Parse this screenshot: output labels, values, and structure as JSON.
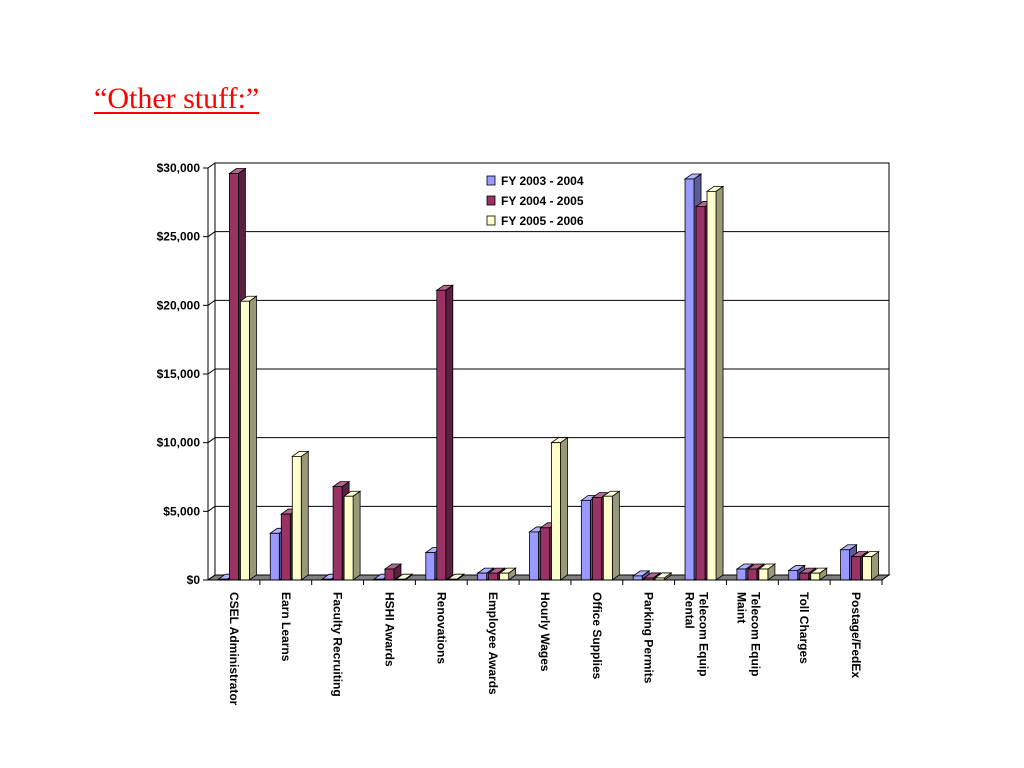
{
  "slide": {
    "title": "“Other stuff:”"
  },
  "colors": {
    "series": [
      "#9999ff",
      "#993366",
      "#ffffcc"
    ],
    "axis": "#000000",
    "floor": "#808080"
  },
  "chart_data": {
    "type": "bar",
    "categories": [
      "CSEL Administrator",
      "Earn Learns",
      "Faculty Recruiting",
      "HSHI Awards",
      "Renovations",
      "Employee Awards",
      "Hourly Wages",
      "Office Supplies",
      "Parking Permits",
      "Telecom Equip Rental",
      "Telecom Equip Maint",
      "Toll Charges",
      "Postage/FedEx"
    ],
    "series": [
      {
        "name": "FY 2003 - 2004",
        "values": [
          0,
          3400,
          0,
          0,
          2000,
          500,
          3500,
          5800,
          300,
          29200,
          800,
          700,
          2200
        ]
      },
      {
        "name": "FY 2004 - 2005",
        "values": [
          29600,
          4800,
          6800,
          800,
          21100,
          500,
          3800,
          6000,
          150,
          27200,
          800,
          500,
          1700
        ]
      },
      {
        "name": "FY 2005 - 2006",
        "values": [
          20300,
          9000,
          6100,
          0,
          0,
          500,
          10000,
          6100,
          150,
          28300,
          800,
          500,
          1700
        ]
      }
    ],
    "yticks": [
      "$0",
      "$5,000",
      "$10,000",
      "$15,000",
      "$20,000",
      "$25,000",
      "$30,000"
    ],
    "ylim": [
      0,
      30000
    ],
    "grid": true,
    "legend_position": "top-right",
    "title": "",
    "xlabel": "",
    "ylabel": ""
  }
}
